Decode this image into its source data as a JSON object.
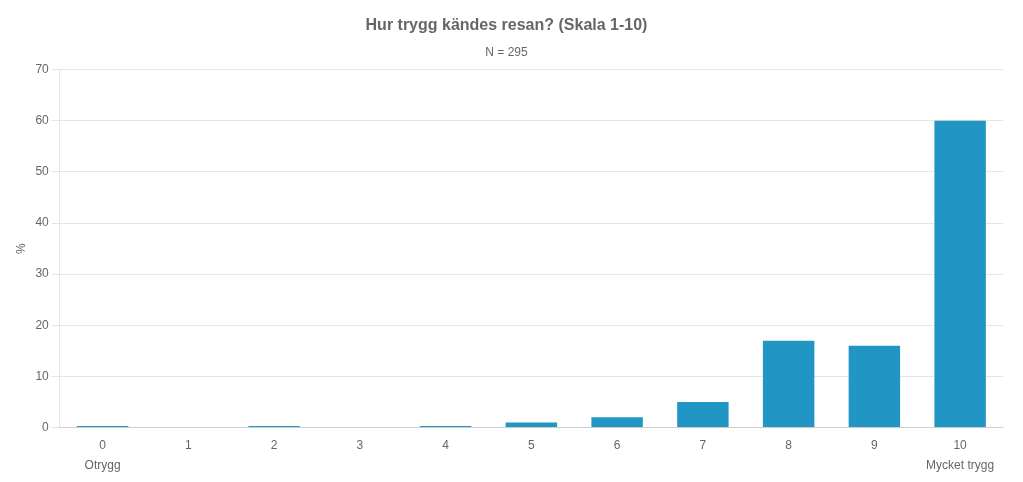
{
  "chart_data": {
    "type": "bar",
    "title": "Hur trygg kändes resan? (Skala 1-10)",
    "subtitle": "N = 295",
    "categories": [
      0,
      1,
      2,
      3,
      4,
      5,
      6,
      7,
      8,
      9,
      10
    ],
    "values": [
      0.3,
      0.0,
      0.3,
      0.0,
      0.3,
      1.0,
      2.0,
      5.0,
      17.0,
      16.0,
      60.0
    ],
    "color": "#2196C4",
    "ylabel": "%",
    "ylim": [
      0,
      70
    ],
    "yticks": [
      0,
      10,
      20,
      30,
      40,
      50,
      60,
      70
    ],
    "grid": true,
    "annotations": [
      {
        "text": "Otrygg",
        "category": 0
      },
      {
        "text": "Mycket trygg",
        "category": 10
      }
    ]
  }
}
